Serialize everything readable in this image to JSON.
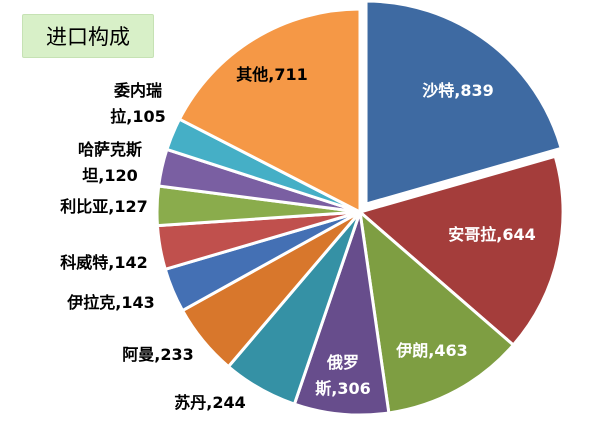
{
  "title": "进口构成",
  "chart_data": {
    "type": "pie",
    "title": "进口构成",
    "slices": [
      {
        "name": "沙特",
        "value": 839,
        "label": "沙特,839",
        "color": "#3e6aa2"
      },
      {
        "name": "安哥拉",
        "value": 644,
        "label": "安哥拉,644",
        "color": "#a43d3b"
      },
      {
        "name": "伊朗",
        "value": 463,
        "label": "伊朗,463",
        "color": "#7e9e42"
      },
      {
        "name": "俄罗斯",
        "value": 306,
        "label": "俄罗斯,306",
        "color": "#674d8c"
      },
      {
        "name": "苏丹",
        "value": 244,
        "label": "苏丹,244",
        "color": "#3591a5"
      },
      {
        "name": "阿曼",
        "value": 233,
        "label": "阿曼,233",
        "color": "#d8772c"
      },
      {
        "name": "伊拉克",
        "value": 143,
        "label": "伊拉克,143",
        "color": "#4470b4"
      },
      {
        "name": "科威特",
        "value": 142,
        "label": "科威特,142",
        "color": "#c0504d"
      },
      {
        "name": "利比亚",
        "value": 127,
        "label": "利比亚,127",
        "color": "#8aac4c"
      },
      {
        "name": "哈萨克斯坦",
        "value": 120,
        "label": "哈萨克斯坦,120",
        "color": "#7a5fa2"
      },
      {
        "name": "委内瑞拉",
        "value": 105,
        "label": "委内瑞拉,105",
        "color": "#45afc6"
      },
      {
        "name": "其他",
        "value": 711,
        "label": "其他,711",
        "color": "#f59846"
      }
    ]
  }
}
